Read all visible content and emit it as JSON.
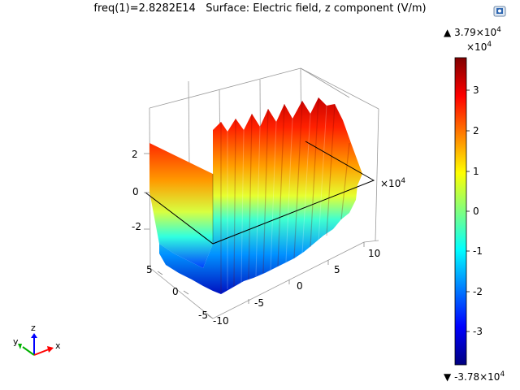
{
  "plot": {
    "title": "freq(1)=2.8282E14   Surface: Electric field, z component (V/m)"
  },
  "toolbar": {
    "icon": "export-image-icon"
  },
  "colorbar": {
    "max_label_mantissa": "3.79×10",
    "max_label_exp": "4",
    "min_label_mantissa": "-3.78×10",
    "min_label_exp": "4",
    "multiplier_base": "×10",
    "multiplier_exp": "4",
    "ticks": [
      "3",
      "2",
      "1",
      "0",
      "-1",
      "-2",
      "-3"
    ],
    "max_marker": "▲",
    "min_marker": "▼"
  },
  "axes": {
    "z_ticks": [
      "2",
      "0",
      "-2"
    ],
    "y_ticks": [
      "5",
      "0",
      "-5"
    ],
    "x_ticks": [
      "-10",
      "-5",
      "0",
      "5",
      "10"
    ],
    "x_multiplier_base": "×10",
    "x_multiplier_exp": "4"
  },
  "triad": {
    "x": "x",
    "y": "y",
    "z": "z"
  },
  "colors": {
    "colormap": [
      "#00007f",
      "#0000ff",
      "#00ffff",
      "#ffff00",
      "#ff0000",
      "#7f0000"
    ]
  }
}
